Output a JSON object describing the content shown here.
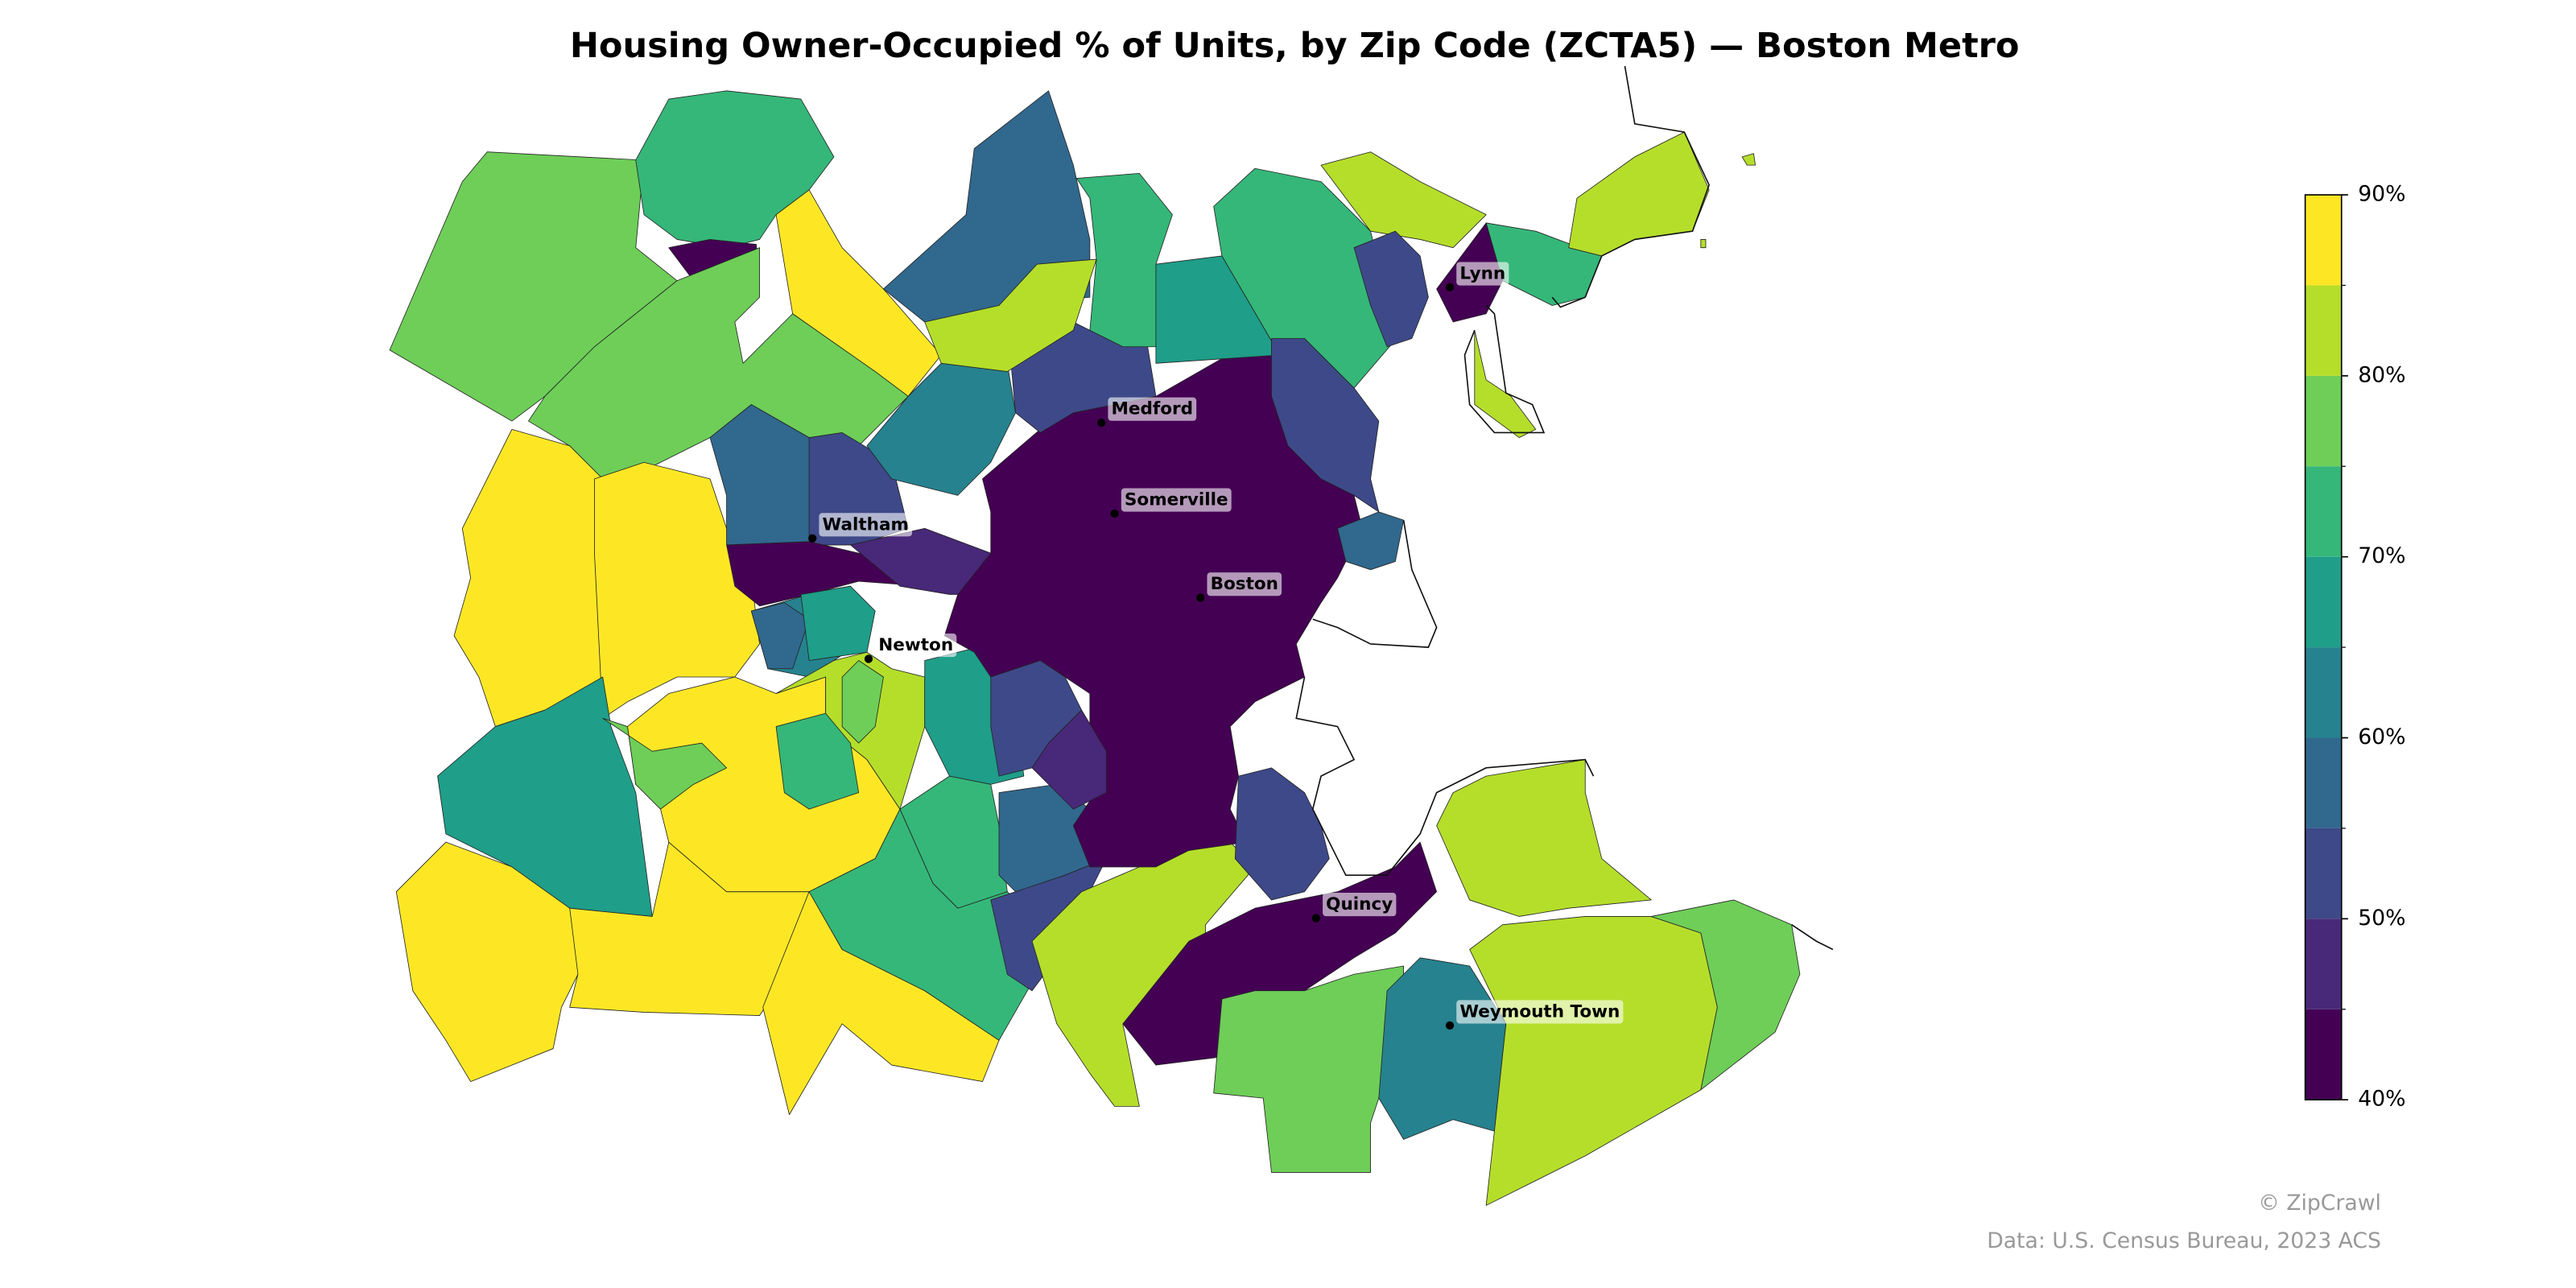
{
  "map": {
    "type": "choropleth",
    "title": "Housing Owner-Occupied % of Units, by Zip Code (ZCTA5) — Boston Metro",
    "values": [
      77,
      72,
      42,
      87,
      78,
      88,
      87,
      67,
      88,
      88,
      88,
      87,
      78,
      58,
      52,
      42,
      47,
      62,
      57,
      68,
      80,
      77,
      70,
      65,
      73,
      73,
      57,
      53,
      82,
      42,
      52,
      47,
      52,
      62,
      58,
      82,
      73,
      68,
      73,
      82,
      52,
      52,
      42,
      73,
      82,
      57,
      53,
      42,
      77,
      62,
      82,
      78,
      82,
      82
    ],
    "cities": [
      "Lynn",
      "Medford",
      "Somerville",
      "Waltham",
      "Boston",
      "Newton",
      "Quincy",
      "Weymouth Town"
    ],
    "colorbar": {
      "lim": [
        40,
        90
      ],
      "bins": [
        40,
        45,
        50,
        55,
        60,
        65,
        70,
        75,
        80,
        85,
        90
      ],
      "colors": [
        "#440154",
        "#482878",
        "#3e4989",
        "#31688e",
        "#26828e",
        "#1f9e89",
        "#35b779",
        "#6ece58",
        "#b5de2b",
        "#fde725"
      ],
      "ticks": [
        {
          "value": 40,
          "label": "40%"
        },
        {
          "value": 50,
          "label": "50%"
        },
        {
          "value": 60,
          "label": "60%"
        },
        {
          "value": 70,
          "label": "70%"
        },
        {
          "value": 80,
          "label": "80%"
        },
        {
          "value": 90,
          "label": "90%"
        }
      ]
    },
    "credit": "© ZipCrawl",
    "source": "Data: U.S. Census Bureau, 2023 ACS"
  }
}
